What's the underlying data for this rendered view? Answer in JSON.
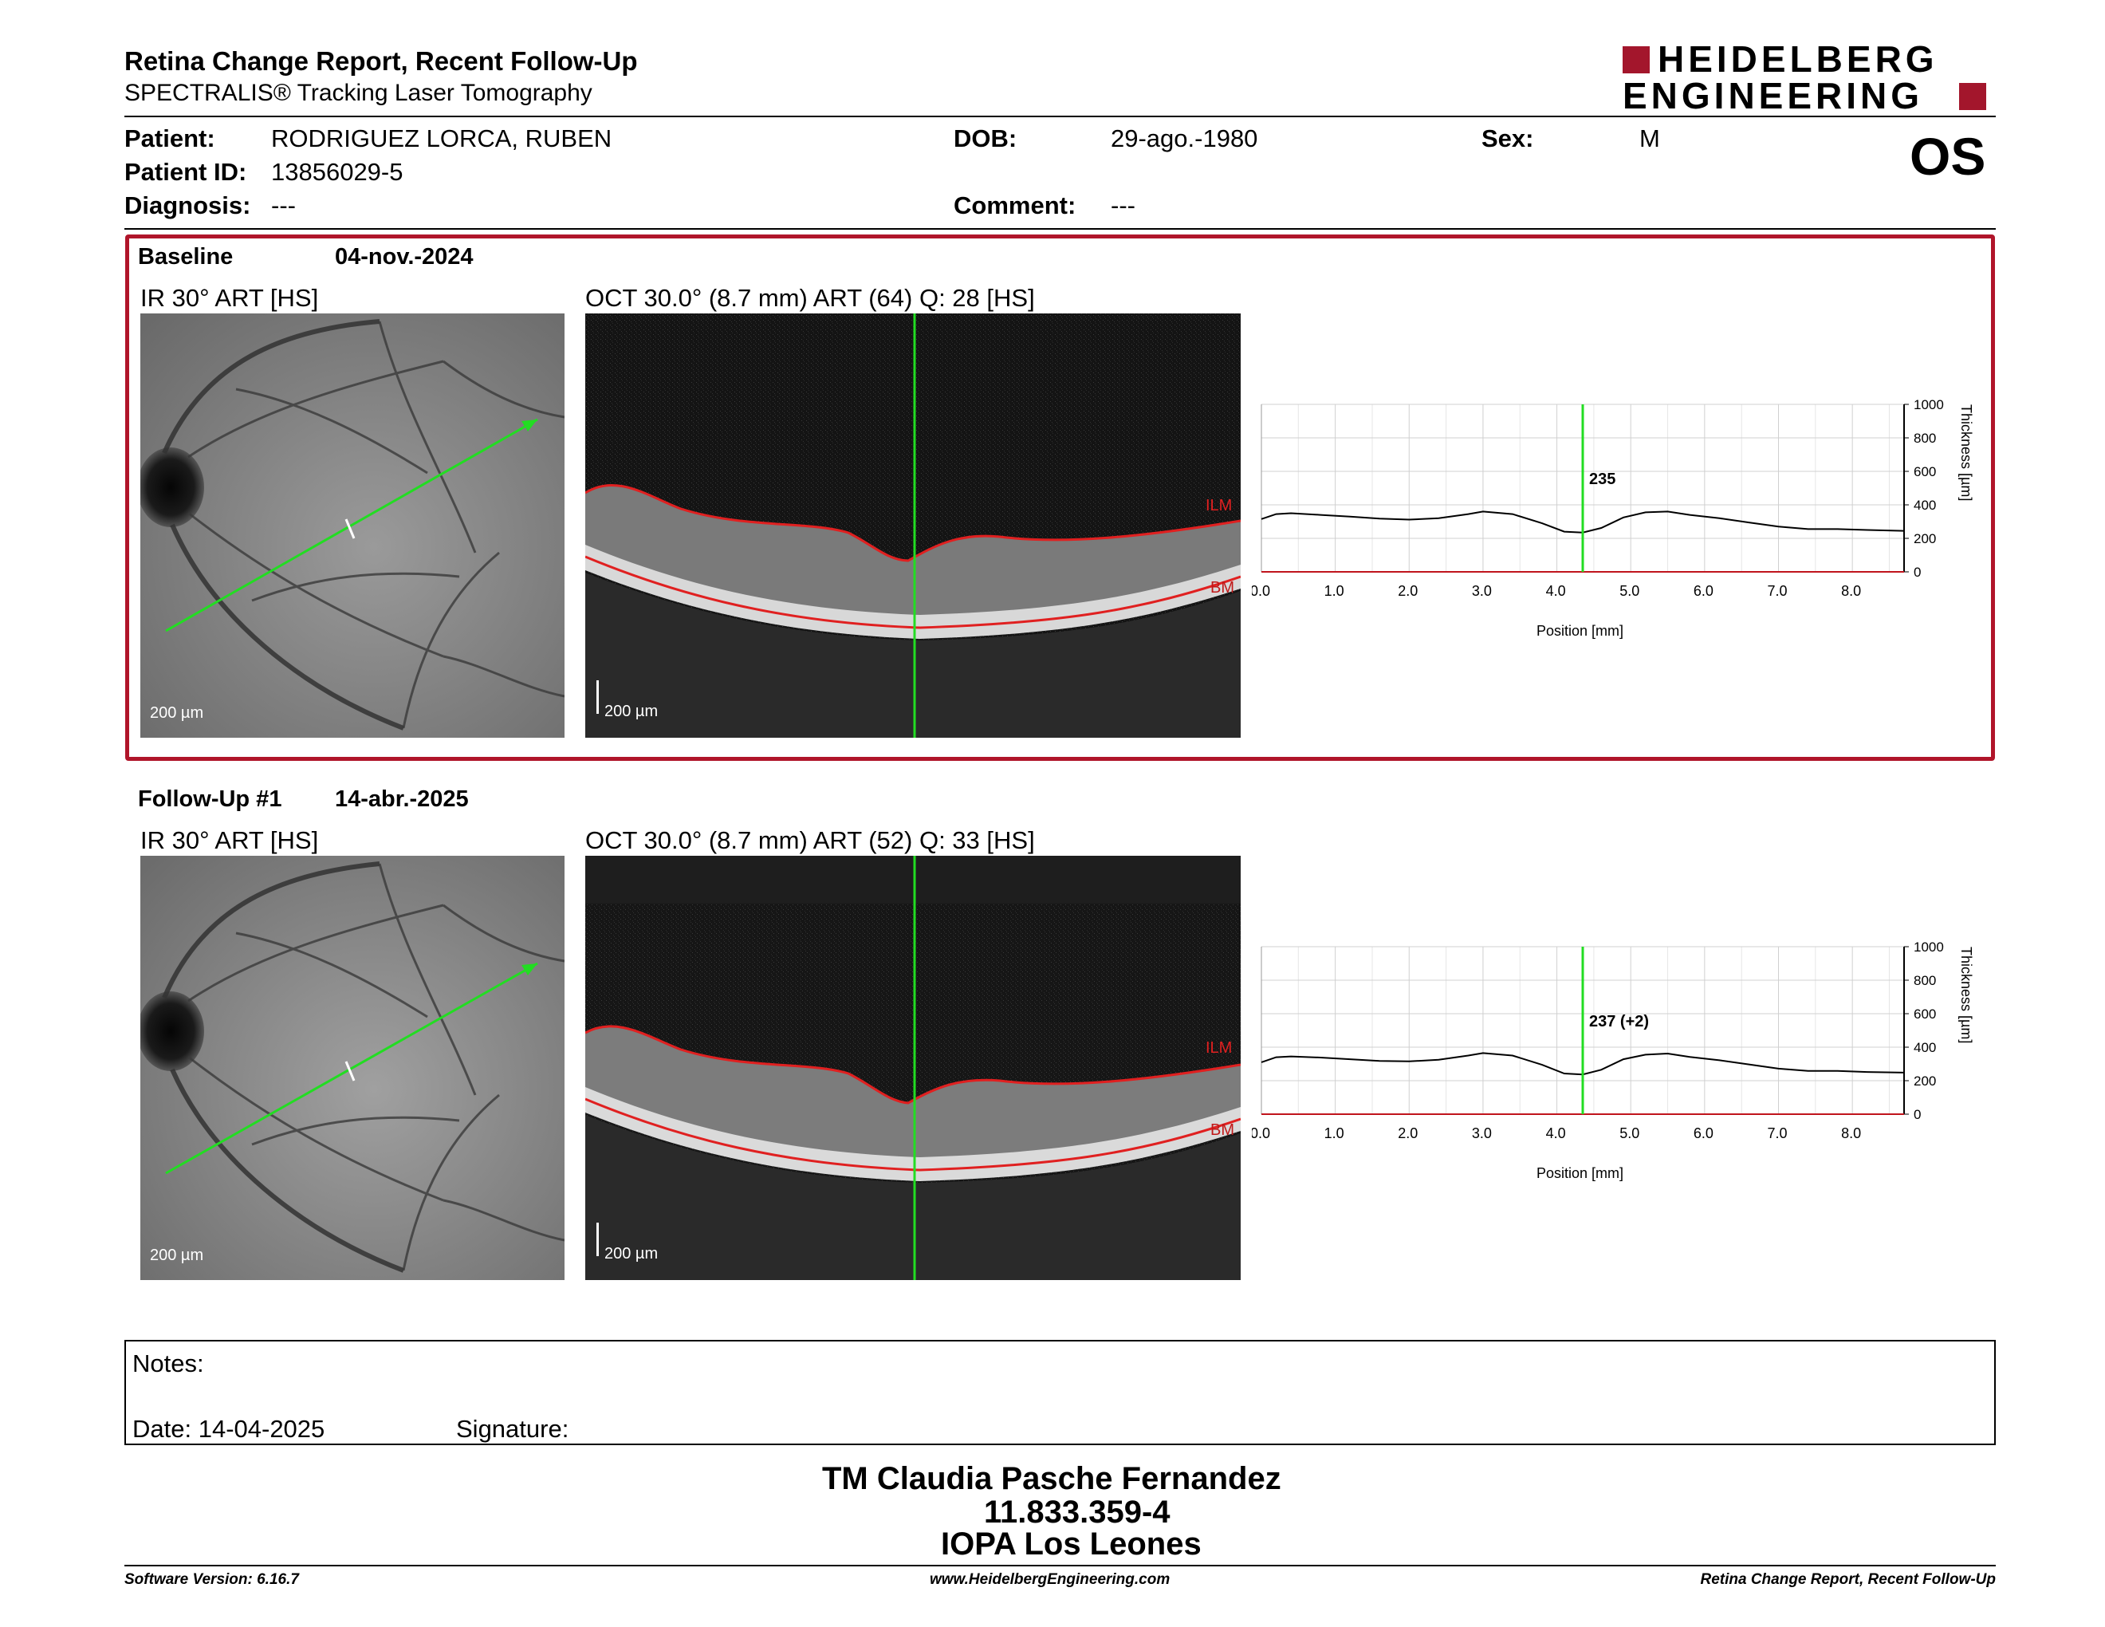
{
  "header": {
    "title": "Retina Change Report, Recent Follow-Up",
    "subtitle": "SPECTRALIS® Tracking Laser Tomography",
    "logo_line1": "HEIDELBERG",
    "logo_line2": "ENGINEERING",
    "eye": "OS"
  },
  "patient": {
    "patient_label": "Patient:",
    "patient_value": "RODRIGUEZ LORCA, RUBEN",
    "id_label": "Patient ID:",
    "id_value": "13856029-5",
    "diagnosis_label": "Diagnosis:",
    "diagnosis_value": "---",
    "dob_label": "DOB:",
    "dob_value": "29-ago.-1980",
    "comment_label": "Comment:",
    "comment_value": "---",
    "sex_label": "Sex:",
    "sex_value": "M"
  },
  "exams": [
    {
      "name": "Baseline",
      "date": "04-nov.-2024",
      "ir_label": "IR 30° ART [HS]",
      "oct_label": "OCT 30.0° (8.7 mm) ART (64) Q: 28 [HS]",
      "scale": "200 µm",
      "ilm": "ILM",
      "bm": "BM",
      "marker_value": "235"
    },
    {
      "name": "Follow-Up #1",
      "date": "14-abr.-2025",
      "ir_label": "IR 30° ART [HS]",
      "oct_label": "OCT 30.0° (8.7 mm) ART (52) Q: 33 [HS]",
      "scale": "200 µm",
      "ilm": "ILM",
      "bm": "BM",
      "marker_value": "237 (+2)"
    }
  ],
  "chart_data": [
    {
      "type": "line",
      "title": "",
      "xlabel": "Position [mm]",
      "ylabel": "Thickness [µm]",
      "xlim": [
        0,
        8.7
      ],
      "ylim": [
        0,
        1000
      ],
      "xticks": [
        "0.0",
        "1.0",
        "2.0",
        "3.0",
        "4.0",
        "5.0",
        "6.0",
        "7.0",
        "8.0"
      ],
      "yticks": [
        "0",
        "200",
        "400",
        "600",
        "800",
        "1000"
      ],
      "marker_x": 4.35,
      "marker_label": "235",
      "grid": true,
      "series": [
        {
          "x": [
            0.0,
            0.2,
            0.4,
            0.8,
            1.2,
            1.6,
            2.0,
            2.4,
            2.8,
            3.0,
            3.4,
            3.8,
            4.1,
            4.35,
            4.6,
            4.9,
            5.2,
            5.5,
            5.8,
            6.2,
            6.6,
            7.0,
            7.4,
            7.8,
            8.2,
            8.7
          ],
          "y": [
            315,
            345,
            350,
            340,
            330,
            318,
            312,
            320,
            345,
            360,
            345,
            290,
            240,
            235,
            262,
            325,
            355,
            360,
            340,
            320,
            295,
            270,
            255,
            255,
            250,
            245
          ]
        }
      ]
    },
    {
      "type": "line",
      "title": "",
      "xlabel": "Position [mm]",
      "ylabel": "Thickness [µm]",
      "xlim": [
        0,
        8.7
      ],
      "ylim": [
        0,
        1000
      ],
      "xticks": [
        "0.0",
        "1.0",
        "2.0",
        "3.0",
        "4.0",
        "5.0",
        "6.0",
        "7.0",
        "8.0"
      ],
      "yticks": [
        "0",
        "200",
        "400",
        "600",
        "800",
        "1000"
      ],
      "marker_x": 4.35,
      "marker_label": "237 (+2)",
      "grid": true,
      "series": [
        {
          "x": [
            0.0,
            0.2,
            0.4,
            0.8,
            1.2,
            1.6,
            2.0,
            2.4,
            2.8,
            3.0,
            3.4,
            3.8,
            4.1,
            4.35,
            4.6,
            4.9,
            5.2,
            5.5,
            5.8,
            6.2,
            6.6,
            7.0,
            7.4,
            7.8,
            8.2,
            8.7
          ],
          "y": [
            310,
            340,
            345,
            338,
            328,
            318,
            315,
            325,
            350,
            365,
            350,
            295,
            243,
            237,
            265,
            328,
            355,
            362,
            342,
            322,
            297,
            272,
            258,
            258,
            252,
            248
          ]
        }
      ]
    }
  ],
  "notes": {
    "notes_label": "Notes:",
    "date_label": "Date: 14-04-2025",
    "signature_label": "Signature:"
  },
  "signatory": {
    "name": "TM Claudia Pasche Fernandez",
    "rut": "11.833.359-4",
    "institution": "IOPA Los Leones"
  },
  "footer": {
    "software": "Software Version: 6.16.7",
    "website": "www.HeidelbergEngineering.com",
    "report": "Retina Change Report, Recent Follow-Up"
  },
  "colors": {
    "accent_red": "#b0152a",
    "scan_line_green": "#22dd22",
    "boundary_red": "#e02020"
  }
}
